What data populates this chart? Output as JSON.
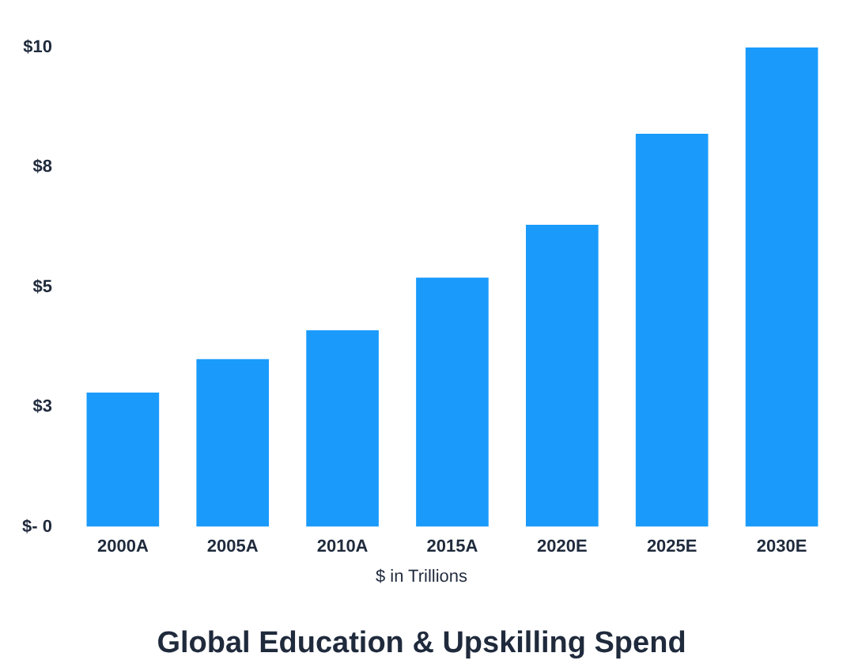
{
  "chart_data": {
    "type": "bar",
    "title": "Global Education & Upskilling Spend",
    "subtitle": "$ in Trillions",
    "categories": [
      "2000A",
      "2005A",
      "2010A",
      "2015A",
      "2020E",
      "2025E",
      "2030E"
    ],
    "values": [
      2.8,
      3.5,
      4.1,
      5.2,
      6.3,
      8.2,
      10
    ],
    "color": "#1a9bfc",
    "ylim": [
      0,
      10
    ],
    "yticks": [
      {
        "value": 0,
        "label": "$- 0"
      },
      {
        "value": 2.5,
        "label": "$3"
      },
      {
        "value": 5,
        "label": "$5"
      },
      {
        "value": 7.5,
        "label": "$8"
      },
      {
        "value": 10,
        "label": "$10"
      }
    ],
    "grid": false,
    "legend": false
  }
}
